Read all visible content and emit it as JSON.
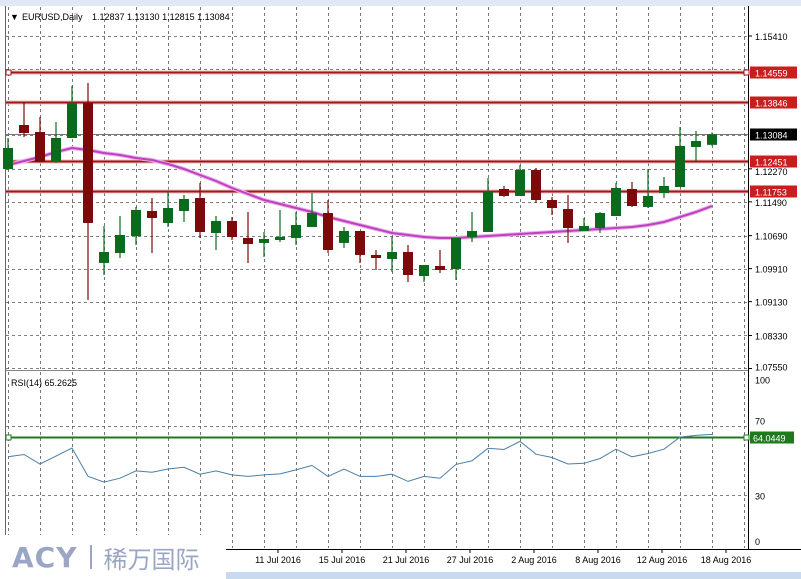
{
  "header": {
    "menu_icon": "triangle-down-icon",
    "symbol": "EURUSD,Daily",
    "ohlc": "1.12837 1.13130 1.12815 1.13084"
  },
  "colors": {
    "bull": "#0b6b1c",
    "bear": "#7d0a0a",
    "ma": "#c040c0",
    "hline": "#a01818",
    "rsi": "#4a7fa8",
    "rsi_level": "#1d7a1d"
  },
  "price_axis": {
    "ticks": [
      "1.15410",
      "1.12270",
      "1.11490",
      "1.10690",
      "1.09910",
      "1.09130",
      "1.08330",
      "1.07550"
    ],
    "grid_levels": [
      1.1541,
      1.1463,
      1.1385,
      1.1307,
      1.1227,
      1.1149,
      1.1069,
      1.0991,
      1.0913,
      1.0833,
      1.0755
    ],
    "ylim": [
      1.0755,
      1.1541
    ]
  },
  "horizontal_lines": [
    {
      "value": 1.14559,
      "label": "1.14559",
      "color": "#a01818",
      "selected": true
    },
    {
      "value": 1.13846,
      "label": "1.13846",
      "color": "#a01818"
    },
    {
      "value": 1.12451,
      "label": "1.12451",
      "color": "#a01818"
    },
    {
      "value": 1.11753,
      "label": "1.11753",
      "color": "#a01818"
    }
  ],
  "current_price": {
    "value": 1.13084,
    "label": "1.13084"
  },
  "rsi": {
    "title": "RSI(14) 65.2625",
    "ticks": [
      "100",
      "70",
      "30",
      "0"
    ],
    "tick_values": [
      100,
      70,
      30,
      0
    ],
    "level_line": {
      "value": 64.0449,
      "label": "64.0449"
    },
    "values": [
      52.3,
      53.6,
      48.1,
      52.7,
      57.4,
      40.9,
      37.6,
      39.9,
      44.1,
      43.3,
      45.2,
      46.2,
      42.2,
      44.1,
      41.8,
      40.9,
      41.8,
      42.4,
      44.7,
      47.3,
      40.9,
      45.2,
      40.9,
      40.9,
      42.2,
      38.0,
      40.9,
      39.9,
      47.9,
      50.0,
      57.2,
      56.5,
      61.2,
      53.8,
      51.9,
      48.1,
      48.5,
      51.3,
      56.7,
      52.3,
      54.2,
      56.7,
      63.7,
      64.7,
      65.26
    ]
  },
  "time_axis": {
    "labels": [
      {
        "text": "11 Jul 2016",
        "index": 17
      },
      {
        "text": "15 Jul 2016",
        "index": 21
      },
      {
        "text": "21 Jul 2016",
        "index": 25
      },
      {
        "text": "27 Jul 2016",
        "index": 29
      },
      {
        "text": "2 Aug 2016",
        "index": 33
      },
      {
        "text": "8 Aug 2016",
        "index": 37
      },
      {
        "text": "12 Aug 2016",
        "index": 41
      },
      {
        "text": "18 Aug 2016",
        "index": 45
      }
    ]
  },
  "chart_data": {
    "type": "candlestick",
    "title": "EURUSD,Daily",
    "ylim": [
      1.0755,
      1.1541
    ],
    "grid": true,
    "ohlc": [
      [
        1.12266,
        1.12999,
        1.12242,
        1.12762
      ],
      [
        1.13306,
        1.1385,
        1.13022,
        1.13117
      ],
      [
        1.13141,
        1.13495,
        1.12431,
        1.12431
      ],
      [
        1.12431,
        1.13377,
        1.12408,
        1.12999
      ],
      [
        1.12999,
        1.14228,
        1.12999,
        1.13826
      ],
      [
        1.13826,
        1.14299,
        1.09169,
        1.10989
      ],
      [
        1.10044,
        1.10918,
        1.0976,
        1.10304
      ],
      [
        1.1028,
        1.11155,
        1.10162,
        1.10706
      ],
      [
        1.10682,
        1.11368,
        1.10469,
        1.11297
      ],
      [
        1.11273,
        1.1158,
        1.1028,
        1.11108
      ],
      [
        1.10989,
        1.11722,
        1.10895,
        1.11344
      ],
      [
        1.11273,
        1.11651,
        1.11013,
        1.11557
      ],
      [
        1.1158,
        1.11935,
        1.10635,
        1.10777
      ],
      [
        1.10753,
        1.11155,
        1.10351,
        1.11037
      ],
      [
        1.11037,
        1.11131,
        1.10587,
        1.10658
      ],
      [
        1.10635,
        1.11249,
        1.10044,
        1.10493
      ],
      [
        1.10517,
        1.10777,
        1.10186,
        1.10611
      ],
      [
        1.10587,
        1.11297,
        1.1054,
        1.10658
      ],
      [
        1.10635,
        1.11249,
        1.10469,
        1.10942
      ],
      [
        1.10895,
        1.11699,
        1.10895,
        1.11226
      ],
      [
        1.11226,
        1.11533,
        1.1028,
        1.10351
      ],
      [
        1.10517,
        1.10895,
        1.10398,
        1.108
      ],
      [
        1.108,
        1.108,
        1.10044,
        1.10233
      ],
      [
        1.10233,
        1.10351,
        1.09878,
        1.10162
      ],
      [
        1.10138,
        1.10658,
        1.09831,
        1.10304
      ],
      [
        1.10304,
        1.10469,
        1.09595,
        1.0976
      ],
      [
        1.09736,
        1.09996,
        1.09595,
        1.09996
      ],
      [
        1.09973,
        1.10351,
        1.09807,
        1.09878
      ],
      [
        1.09902,
        1.10635,
        1.09642,
        1.10635
      ],
      [
        1.10658,
        1.11249,
        1.1054,
        1.108
      ],
      [
        1.10777,
        1.12053,
        1.10777,
        1.11746
      ],
      [
        1.11793,
        1.11864,
        1.11604,
        1.11628
      ],
      [
        1.11628,
        1.1236,
        1.11628,
        1.12242
      ],
      [
        1.12242,
        1.1229,
        1.11462,
        1.11533
      ],
      [
        1.11533,
        1.11604,
        1.11178,
        1.11344
      ],
      [
        1.1132,
        1.11651,
        1.10517,
        1.10871
      ],
      [
        1.108,
        1.11108,
        1.108,
        1.10918
      ],
      [
        1.10871,
        1.11249,
        1.10753,
        1.11226
      ],
      [
        1.11155,
        1.11935,
        1.11155,
        1.11817
      ],
      [
        1.11793,
        1.11959,
        1.11368,
        1.11391
      ],
      [
        1.11368,
        1.12266,
        1.11344,
        1.11628
      ],
      [
        1.11699,
        1.12077,
        1.1158,
        1.11864
      ],
      [
        1.1184,
        1.13259,
        1.1184,
        1.1281
      ],
      [
        1.12786,
        1.13164,
        1.12431,
        1.12928
      ],
      [
        1.12837,
        1.1313,
        1.12815,
        1.13084
      ]
    ],
    "moving_average": [
      1.1236,
      1.12455,
      1.1255,
      1.12668,
      1.12762,
      1.12715,
      1.12644,
      1.12597,
      1.12526,
      1.12479,
      1.12384,
      1.12266,
      1.12124,
      1.11982,
      1.11817,
      1.11675,
      1.11533,
      1.11438,
      1.11344,
      1.11249,
      1.11131,
      1.11037,
      1.10942,
      1.10847,
      1.10753,
      1.10706,
      1.10658,
      1.10635,
      1.10635,
      1.10658,
      1.10682,
      1.10706,
      1.10729,
      1.10753,
      1.10777,
      1.108,
      1.10824,
      1.10847,
      1.10871,
      1.10895,
      1.10942,
      1.11013,
      1.11131,
      1.11249,
      1.11391
    ]
  },
  "watermark": {
    "brand": "ACY",
    "chinese": "稀万国际"
  }
}
